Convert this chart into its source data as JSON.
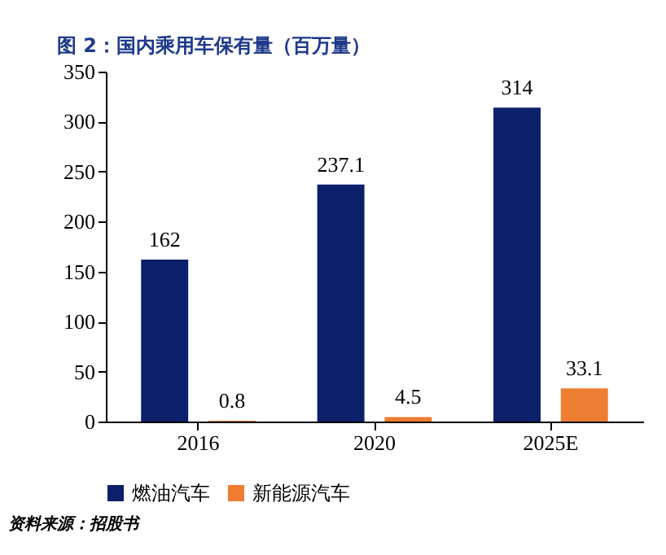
{
  "chart_data": {
    "type": "bar",
    "title": "图 2：国内乘用车保有量（百万量）",
    "categories": [
      "2016",
      "2020",
      "2025E"
    ],
    "series": [
      {
        "name": "燃油汽车",
        "color": "#0b1f6b",
        "values": [
          162,
          237.1,
          314
        ]
      },
      {
        "name": "新能源汽车",
        "color": "#ed7d31",
        "values": [
          0.8,
          4.5,
          33.1
        ]
      }
    ],
    "ylim": [
      0,
      350
    ],
    "yticks": [
      0,
      50,
      100,
      150,
      200,
      250,
      300,
      350
    ],
    "grid": false,
    "legend": "bottom",
    "data_labels": true,
    "annotations": [
      "资料来源：招股书"
    ]
  }
}
